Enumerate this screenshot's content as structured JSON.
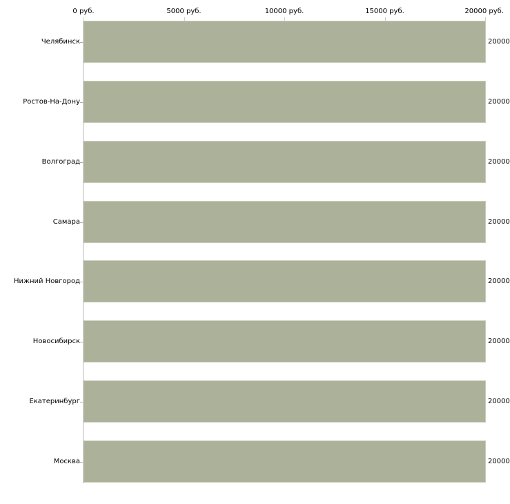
{
  "chart": {
    "x_axis": {
      "max": 20000,
      "ticks": [
        {
          "label": "0 руб.",
          "value": 0
        },
        {
          "label": "5000 руб.",
          "value": 5000
        },
        {
          "label": "10000 руб.",
          "value": 10000
        },
        {
          "label": "15000 руб.",
          "value": 15000
        },
        {
          "label": "20000 руб.",
          "value": 20000
        }
      ]
    },
    "bars": [
      {
        "label": "Челябинск",
        "value": 20000,
        "value_label": "20000"
      },
      {
        "label": "Ростов-На-Дону",
        "value": 20000,
        "value_label": "20000"
      },
      {
        "label": "Волгоград",
        "value": 20000,
        "value_label": "20000"
      },
      {
        "label": "Самара",
        "value": 20000,
        "value_label": "20000"
      },
      {
        "label": "Нижний Новгород",
        "value": 20000,
        "value_label": "20000"
      },
      {
        "label": "Новосибирск",
        "value": 20000,
        "value_label": "20000"
      },
      {
        "label": "Екатеринбург",
        "value": 20000,
        "value_label": "20000"
      },
      {
        "label": "Москва",
        "value": 20000,
        "value_label": "20000"
      }
    ],
    "colors": {
      "bar_fill": "#acb199",
      "bar_border": "#c9ccba",
      "axis_line": "#bcbcbc",
      "tick_mark": "#ced1c0",
      "text": "#000000",
      "background": "#ffffff"
    }
  },
  "chart_data": {
    "type": "bar",
    "orientation": "horizontal",
    "title": "",
    "xlabel": "руб.",
    "ylabel": "",
    "categories": [
      "Челябинск",
      "Ростов-На-Дону",
      "Волгоград",
      "Самара",
      "Нижний Новгород",
      "Новосибирск",
      "Екатеринбург",
      "Москва"
    ],
    "values": [
      20000,
      20000,
      20000,
      20000,
      20000,
      20000,
      20000,
      20000
    ],
    "xlim": [
      0,
      20000
    ],
    "x_tick_labels": [
      "0 руб.",
      "5000 руб.",
      "10000 руб.",
      "15000 руб.",
      "20000 руб."
    ],
    "grid": false,
    "legend": false
  }
}
